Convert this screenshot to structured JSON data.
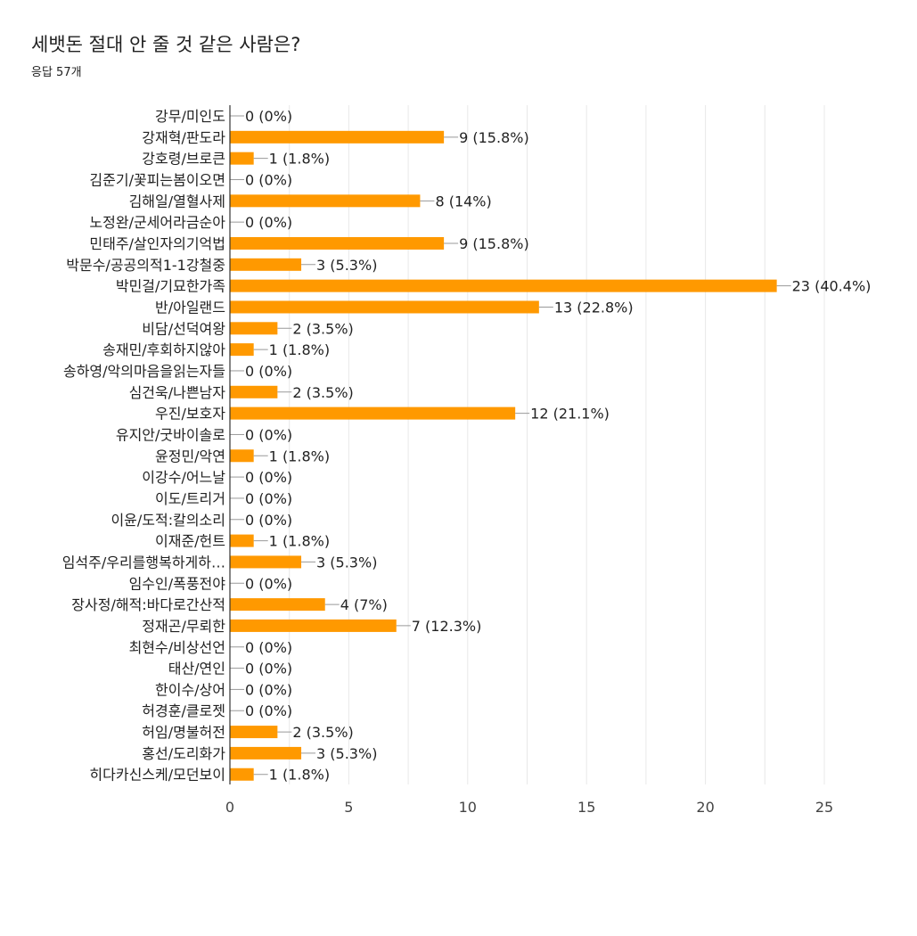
{
  "form": {
    "question": "세뱃돈 절대 안 줄 것 같은 사람은?",
    "responses": "응답 57개"
  },
  "colors": {
    "bar": "#ff9900",
    "grid": "#e8e8e8",
    "axis": "#333333",
    "leader": "#999999"
  },
  "chart_data": {
    "type": "bar",
    "orientation": "horizontal",
    "categories": [
      "강무/미인도",
      "강재혁/판도라",
      "강호령/브로큰",
      "김준기/꽃피는봄이오면",
      "김해일/열혈사제",
      "노정완/군세어라금순아",
      "민태주/살인자의기억법",
      "박문수/공공의적1-1강철중",
      "박민걸/기묘한가족",
      "반/아일랜드",
      "비담/선덕여왕",
      "송재민/후회하지않아",
      "송하영/악의마음을읽는자들",
      "심건욱/나쁜남자",
      "우진/보호자",
      "유지안/굿바이솔로",
      "윤정민/악연",
      "이강수/어느날",
      "이도/트리거",
      "이윤/도적:칼의소리",
      "이재준/헌트",
      "임석주/우리를행복하게하…",
      "임수인/폭풍전야",
      "장사정/해적:바다로간산적",
      "정재곤/무뢰한",
      "최현수/비상선언",
      "태산/연인",
      "한이수/상어",
      "허경훈/클로젯",
      "허임/명불허전",
      "홍선/도리화가",
      "히다카신스케/모던보이"
    ],
    "values": [
      0,
      9,
      1,
      0,
      8,
      0,
      9,
      3,
      23,
      13,
      2,
      1,
      0,
      2,
      12,
      0,
      1,
      0,
      0,
      0,
      1,
      3,
      0,
      4,
      7,
      0,
      0,
      0,
      0,
      2,
      3,
      1
    ],
    "value_labels": [
      "0 (0%)",
      "9 (15.8%)",
      "1 (1.8%)",
      "0 (0%)",
      "8 (14%)",
      "0 (0%)",
      "9 (15.8%)",
      "3 (5.3%)",
      "23 (40.4%)",
      "13 (22.8%)",
      "2 (3.5%)",
      "1 (1.8%)",
      "0 (0%)",
      "2 (3.5%)",
      "12 (21.1%)",
      "0 (0%)",
      "1 (1.8%)",
      "0 (0%)",
      "0 (0%)",
      "0 (0%)",
      "1 (1.8%)",
      "3 (5.3%)",
      "0 (0%)",
      "4 (7%)",
      "7 (12.3%)",
      "0 (0%)",
      "0 (0%)",
      "0 (0%)",
      "0 (0%)",
      "2 (3.5%)",
      "3 (5.3%)",
      "1 (1.8%)"
    ],
    "xlim": [
      0,
      25
    ],
    "xticks": [
      0,
      5,
      10,
      15,
      20,
      25
    ],
    "grid": true,
    "legend": "none"
  }
}
